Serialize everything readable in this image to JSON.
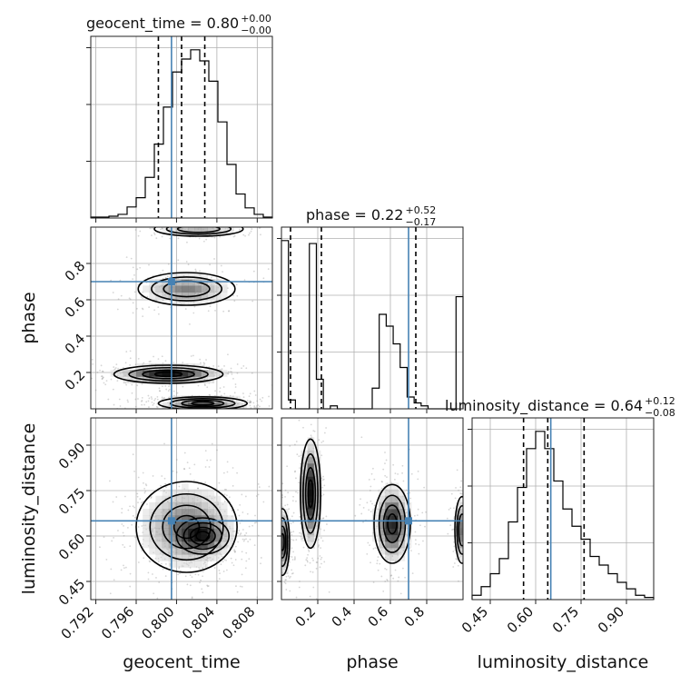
{
  "chart_data": {
    "type": "corner",
    "parameters": [
      "geocent_time",
      "phase",
      "luminosity_distance"
    ],
    "truths": {
      "geocent_time": 0.7995,
      "phase": 0.7,
      "luminosity_distance": 0.65
    },
    "titles": [
      {
        "param": "geocent_time",
        "text": "geocent_time = 0.80",
        "plus": "+0.00",
        "minus": "−0.00"
      },
      {
        "param": "phase",
        "text": "phase = 0.22",
        "plus": "+0.52",
        "minus": "−0.17"
      },
      {
        "param": "luminosity_distance",
        "text": "luminosity_distance = 0.64",
        "plus": "+0.12",
        "minus": "−0.08"
      }
    ],
    "axis_labels": {
      "x": [
        "geocent_time",
        "phase",
        "luminosity_distance"
      ],
      "y": [
        "phase",
        "luminosity_distance"
      ]
    },
    "ranges": {
      "geocent_time": [
        0.7915,
        0.8095
      ],
      "phase": [
        0.0,
        1.0
      ],
      "luminosity_distance": [
        0.39,
        0.99
      ]
    },
    "ticks": {
      "geocent_time": [
        "0.792",
        "0.796",
        "0.800",
        "0.804",
        "0.808"
      ],
      "phase": [
        "0.2",
        "0.4",
        "0.6",
        "0.8"
      ],
      "luminosity_distance": [
        "0.45",
        "0.60",
        "0.75",
        "0.90"
      ]
    },
    "histograms": {
      "geocent_time": {
        "range": [
          0.7915,
          0.8095
        ],
        "counts": [
          1,
          1,
          2,
          4,
          12,
          22,
          44,
          80,
          120,
          158,
          172,
          182,
          170,
          148,
          104,
          58,
          26,
          11,
          4,
          1
        ]
      },
      "phase": {
        "range": [
          0.0,
          1.0
        ],
        "counts": [
          57,
          3,
          0,
          0,
          56,
          10,
          0,
          1,
          0,
          0,
          0,
          0,
          0,
          7,
          32,
          28,
          22,
          14,
          4,
          2,
          1,
          0,
          0,
          0,
          0,
          38
        ]
      },
      "luminosity_distance": {
        "range": [
          0.39,
          0.99
        ],
        "counts": [
          2,
          6,
          12,
          19,
          36,
          52,
          70,
          78,
          70,
          55,
          42,
          34,
          28,
          20,
          16,
          12,
          8,
          5,
          2,
          1
        ]
      }
    },
    "quantiles": {
      "geocent_time": [
        0.7982,
        0.8005,
        0.8028
      ],
      "phase": [
        0.05,
        0.22,
        0.74
      ],
      "luminosity_distance": [
        0.56,
        0.64,
        0.76
      ]
    },
    "density_modes": {
      "phase_vs_geocent_time": [
        {
          "x": 0.7992,
          "y": 0.19,
          "sx": 0.0027,
          "sy": 0.025,
          "w": 1.0
        },
        {
          "x": 0.8026,
          "y": 0.03,
          "sx": 0.0022,
          "sy": 0.018,
          "w": 0.9
        },
        {
          "x": 0.801,
          "y": 0.66,
          "sx": 0.0024,
          "sy": 0.045,
          "w": 0.55
        },
        {
          "x": 0.8022,
          "y": 0.99,
          "sx": 0.0022,
          "sy": 0.02,
          "w": 0.4
        }
      ],
      "luminosity_distance_vs_geocent_time": [
        {
          "x": 0.801,
          "y": 0.63,
          "sx": 0.0025,
          "sy": 0.075,
          "w": 1.0
        },
        {
          "x": 0.8026,
          "y": 0.6,
          "sx": 0.0013,
          "sy": 0.03,
          "w": 0.9
        }
      ],
      "luminosity_distance_vs_phase": [
        {
          "x": 0.16,
          "y": 0.74,
          "sx": 0.028,
          "sy": 0.09,
          "w": 0.8
        },
        {
          "x": 0.61,
          "y": 0.64,
          "sx": 0.05,
          "sy": 0.065,
          "w": 0.75
        },
        {
          "x": 0.005,
          "y": 0.58,
          "sx": 0.02,
          "sy": 0.055,
          "w": 0.7
        },
        {
          "x": 0.995,
          "y": 0.62,
          "sx": 0.02,
          "sy": 0.055,
          "w": 0.6
        }
      ]
    },
    "grid": true
  }
}
